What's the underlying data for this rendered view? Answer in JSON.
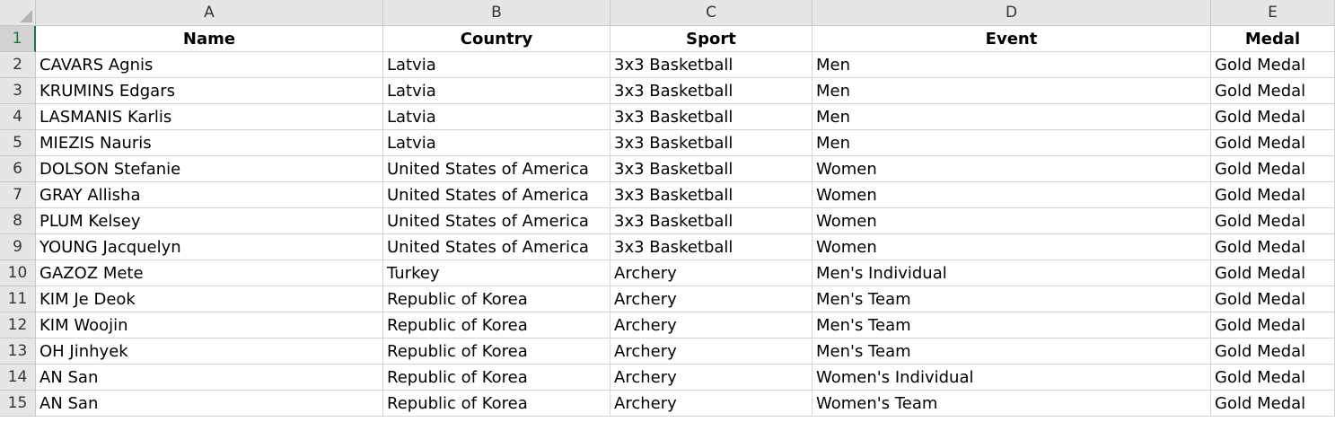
{
  "columns": [
    "A",
    "B",
    "C",
    "D",
    "E"
  ],
  "header_row_number": "1",
  "headers": [
    "Name",
    "Country",
    "Sport",
    "Event",
    "Medal"
  ],
  "rows": [
    {
      "num": "2",
      "cells": [
        "CAVARS Agnis",
        "Latvia",
        "3x3 Basketball",
        "Men",
        "Gold Medal"
      ]
    },
    {
      "num": "3",
      "cells": [
        "KRUMINS Edgars",
        "Latvia",
        "3x3 Basketball",
        "Men",
        "Gold Medal"
      ]
    },
    {
      "num": "4",
      "cells": [
        "LASMANIS Karlis",
        "Latvia",
        "3x3 Basketball",
        "Men",
        "Gold Medal"
      ]
    },
    {
      "num": "5",
      "cells": [
        "MIEZIS Nauris",
        "Latvia",
        "3x3 Basketball",
        "Men",
        "Gold Medal"
      ]
    },
    {
      "num": "6",
      "cells": [
        "DOLSON Stefanie",
        "United States of America",
        "3x3 Basketball",
        "Women",
        "Gold Medal"
      ]
    },
    {
      "num": "7",
      "cells": [
        "GRAY Allisha",
        "United States of America",
        "3x3 Basketball",
        "Women",
        "Gold Medal"
      ]
    },
    {
      "num": "8",
      "cells": [
        "PLUM Kelsey",
        "United States of America",
        "3x3 Basketball",
        "Women",
        "Gold Medal"
      ]
    },
    {
      "num": "9",
      "cells": [
        "YOUNG Jacquelyn",
        "United States of America",
        "3x3 Basketball",
        "Women",
        "Gold Medal"
      ]
    },
    {
      "num": "10",
      "cells": [
        "GAZOZ Mete",
        "Turkey",
        "Archery",
        "Men's Individual",
        "Gold Medal"
      ]
    },
    {
      "num": "11",
      "cells": [
        "KIM Je Deok",
        "Republic of Korea",
        "Archery",
        "Men's Team",
        "Gold Medal"
      ]
    },
    {
      "num": "12",
      "cells": [
        "KIM Woojin",
        "Republic of Korea",
        "Archery",
        "Men's Team",
        "Gold Medal"
      ]
    },
    {
      "num": "13",
      "cells": [
        "OH Jinhyek",
        "Republic of Korea",
        "Archery",
        "Men's Team",
        "Gold Medal"
      ]
    },
    {
      "num": "14",
      "cells": [
        "AN San",
        "Republic of Korea",
        "Archery",
        "Women's Individual",
        "Gold Medal"
      ]
    },
    {
      "num": "15",
      "cells": [
        "AN San",
        "Republic of Korea",
        "Archery",
        "Women's Team",
        "Gold Medal"
      ]
    }
  ]
}
